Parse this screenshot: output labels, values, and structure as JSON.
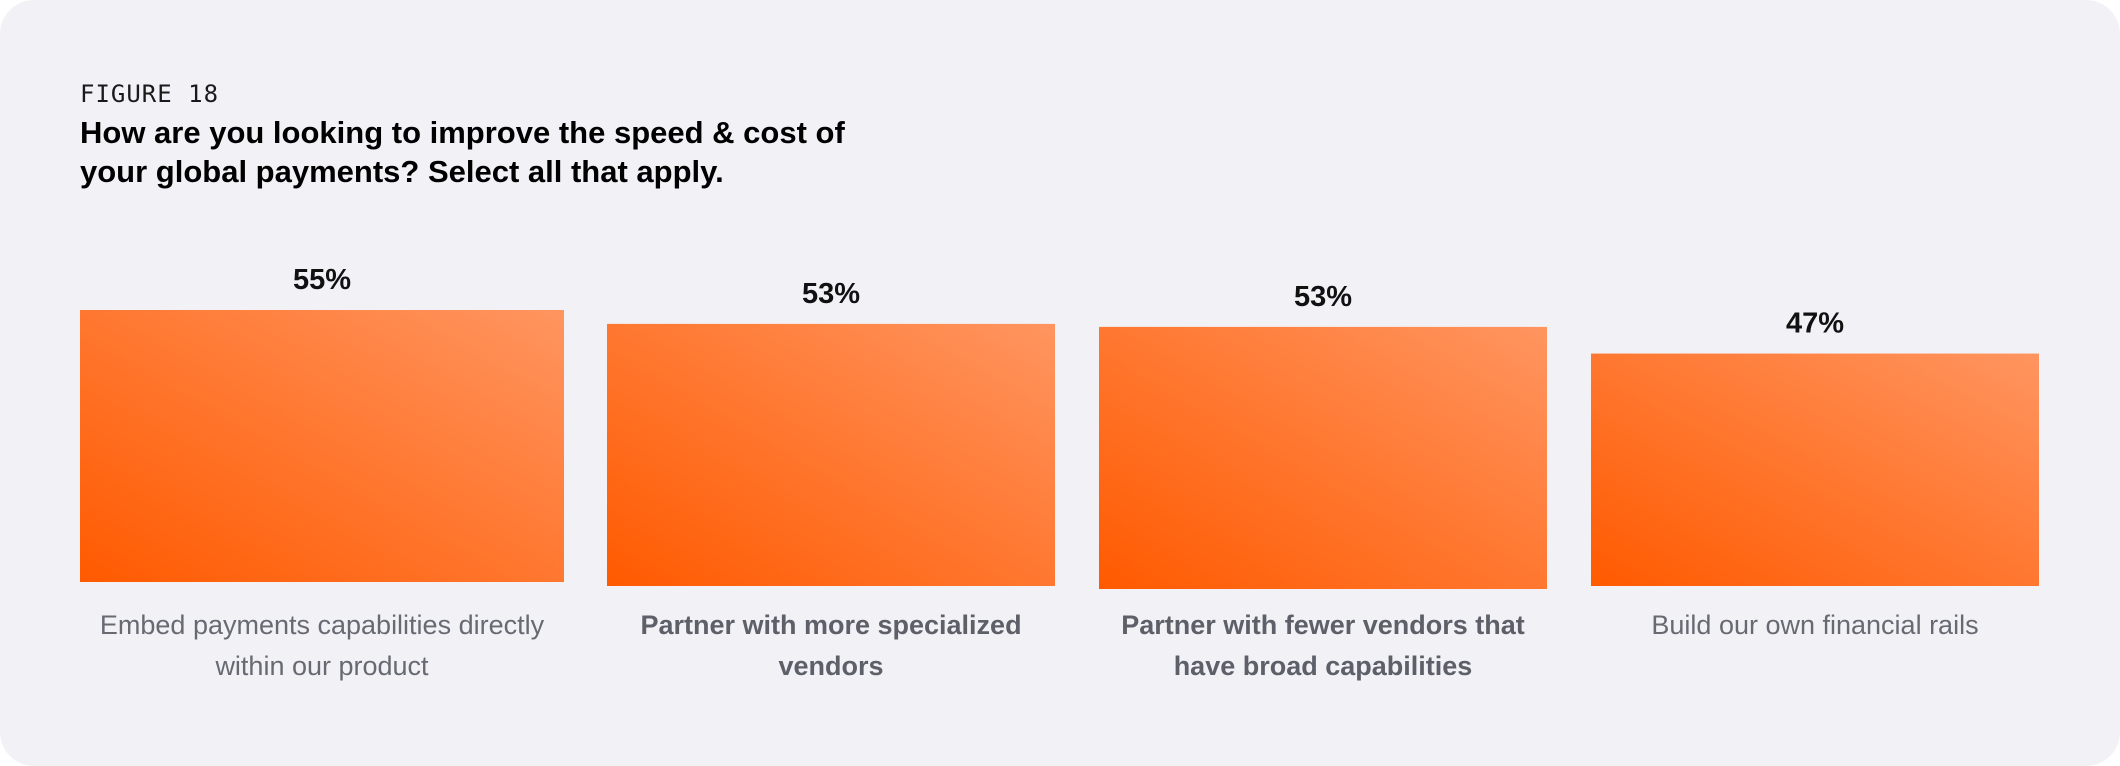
{
  "figure_label": "FIGURE 18",
  "colors": {
    "background": "#f2f1f6",
    "bar_light": "#ff9560",
    "bar_dark": "#ff5a00"
  },
  "chart_data": {
    "type": "bar",
    "title": "How are you looking to improve the speed & cost of your global payments? Select all that apply.",
    "categories": [
      "Embed payments capabilities directly within our product",
      "Partner with more specialized vendors",
      "Partner with fewer vendors that have broad capabilities",
      "Build our own financial rails"
    ],
    "values": [
      55,
      53,
      53,
      47
    ],
    "value_labels": [
      "55%",
      "53%",
      "53%",
      "47%"
    ],
    "category_label_lines": [
      [
        "Embed payments capabilities directly",
        "within our product"
      ],
      [
        "Partner with more specialized",
        "vendors"
      ],
      [
        "Partner with fewer vendors that",
        "have broad capabilities"
      ],
      [
        "Build our own financial rails"
      ]
    ],
    "category_label_bold": [
      false,
      true,
      true,
      false
    ],
    "unit": "%",
    "grid": false,
    "legend": "none"
  }
}
